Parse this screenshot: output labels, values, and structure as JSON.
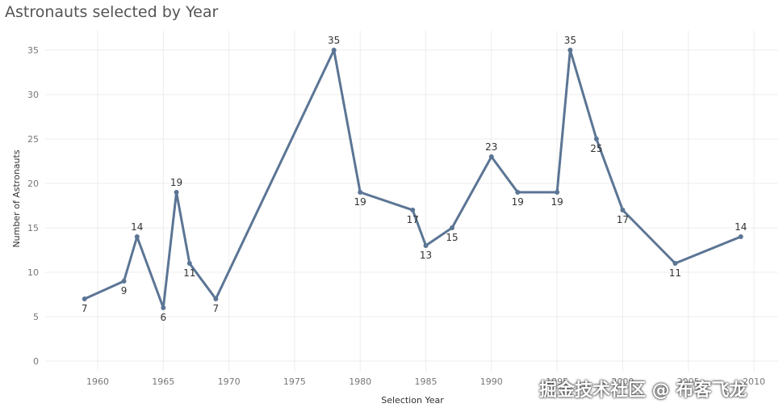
{
  "chart_data": {
    "type": "line",
    "title": "Astronauts selected by Year",
    "xlabel": "Selection Year",
    "ylabel": "Number of Astronauts",
    "xlim": [
      1956,
      2020
    ],
    "ylim": [
      0,
      37
    ],
    "x_ticks": [
      1960,
      1965,
      1970,
      1975,
      1980,
      1985,
      1990,
      1995,
      2000,
      2005,
      2010
    ],
    "y_ticks": [
      0,
      5,
      10,
      15,
      20,
      25,
      30,
      35
    ],
    "grid": true,
    "color": "#5b7594",
    "series": [
      {
        "x": [
          1959,
          1962,
          1963,
          1965,
          1966,
          1967,
          1969,
          1978,
          1980,
          1984,
          1985,
          1987,
          1990,
          1992,
          1995,
          1996,
          1998,
          2000,
          2004,
          2009
        ],
        "y": [
          7,
          9,
          14,
          6,
          19,
          11,
          7,
          35,
          19,
          17,
          13,
          15,
          23,
          19,
          19,
          35,
          25,
          17,
          11,
          14
        ]
      }
    ]
  },
  "watermark": "掘金技术社区 @ 布客飞龙"
}
